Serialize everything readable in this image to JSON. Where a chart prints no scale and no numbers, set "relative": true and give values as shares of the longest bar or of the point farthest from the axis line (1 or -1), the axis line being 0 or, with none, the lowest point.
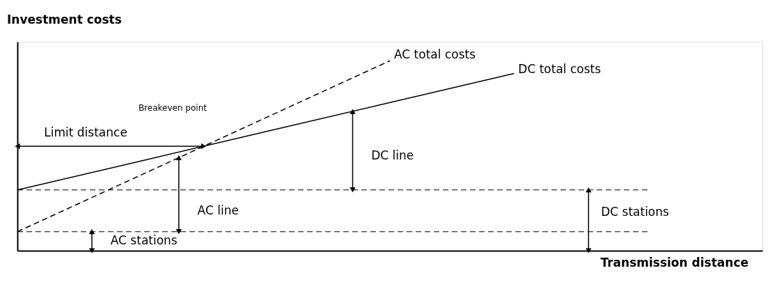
{
  "chart_data": {
    "type": "line",
    "relative": true,
    "xlabel": "Transmission distance",
    "ylabel": "Investment costs",
    "categories": [
      null,
      null,
      null,
      null,
      null,
      null,
      null
    ],
    "series": [
      {
        "name": "AC total costs",
        "color": "#000000",
        "line_style": "dashed",
        "values": [
          0.1,
          0.4,
          0.7,
          1.0,
          null,
          null,
          null
        ]
      },
      {
        "name": "DC total costs",
        "color": "#000000",
        "line_style": "solid",
        "values": [
          0.32,
          0.473,
          0.627,
          0.78,
          0.933,
          null,
          null
        ]
      }
    ],
    "ref_lines": [
      {
        "axis": "y",
        "value": 0.32,
        "color": "#000000",
        "line_style": "dashed"
      },
      {
        "axis": "y",
        "value": 0.1,
        "color": "#000000",
        "line_style": "dashed"
      }
    ],
    "annotations": [
      "Breakeven point",
      "Limit distance",
      "DC line",
      "AC line",
      "DC stations",
      "AC stations"
    ],
    "grid": false,
    "marker": "none"
  }
}
